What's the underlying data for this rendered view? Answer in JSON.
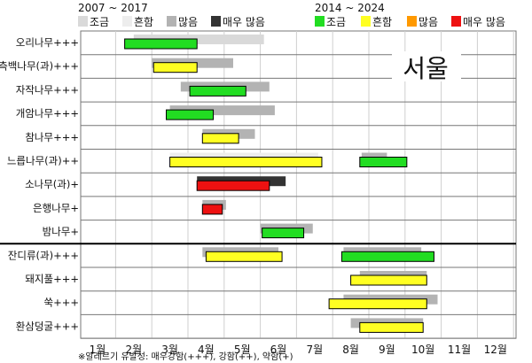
{
  "chart_data": {
    "type": "gantt",
    "periods": {
      "old": {
        "label": "2007 ~ 2017",
        "legend": [
          {
            "name": "조금",
            "color": "#d9d9d9"
          },
          {
            "name": "흔함",
            "color": "#ededed"
          },
          {
            "name": "많음",
            "color": "#b3b3b3"
          },
          {
            "name": "매우 많음",
            "color": "#333333"
          }
        ]
      },
      "new": {
        "label": "2014 ~ 2024",
        "legend": [
          {
            "name": "조금",
            "color": "#22dd22"
          },
          {
            "name": "흔함",
            "color": "#ffff22"
          },
          {
            "name": "많음",
            "color": "#ff9900"
          },
          {
            "name": "매우 많음",
            "color": "#ee1111"
          }
        ]
      }
    },
    "city": "서울",
    "months": [
      "1월",
      "2월",
      "3월",
      "4월",
      "5월",
      "6월",
      "7월",
      "8월",
      "9월",
      "10월",
      "11월",
      "12월"
    ],
    "group_separator_after": "밤나무+",
    "rows": [
      {
        "name": "오리나무+++",
        "old": [
          {
            "start": 2.0,
            "end": 5.6,
            "level": "조금"
          }
        ],
        "new": [
          {
            "start": 1.75,
            "end": 3.75,
            "level": "조금"
          }
        ]
      },
      {
        "name": "측백나무(과)+++",
        "old": [
          {
            "start": 2.5,
            "end": 4.75,
            "level": "많음"
          }
        ],
        "new": [
          {
            "start": 2.55,
            "end": 3.75,
            "level": "흔함"
          }
        ]
      },
      {
        "name": "자작나무+++",
        "old": [
          {
            "start": 3.3,
            "end": 5.75,
            "level": "많음"
          }
        ],
        "new": [
          {
            "start": 3.55,
            "end": 5.1,
            "level": "조금"
          }
        ]
      },
      {
        "name": "개암나무+++",
        "old": [
          {
            "start": 3.0,
            "end": 5.9,
            "level": "많음"
          }
        ],
        "new": [
          {
            "start": 2.9,
            "end": 4.2,
            "level": "조금"
          }
        ]
      },
      {
        "name": "참나무+++",
        "old": [
          {
            "start": 3.9,
            "end": 5.35,
            "level": "많음"
          }
        ],
        "new": [
          {
            "start": 3.9,
            "end": 4.9,
            "level": "흔함"
          }
        ]
      },
      {
        "name": "느릅나무(과)++",
        "old": [
          {
            "start": 3.0,
            "end": 7.1,
            "level": "흔함"
          },
          {
            "start": 8.3,
            "end": 9.0,
            "level": "많음"
          }
        ],
        "new": [
          {
            "start": 3.0,
            "end": 7.2,
            "level": "흔함"
          },
          {
            "start": 8.25,
            "end": 9.55,
            "level": "조금"
          }
        ]
      },
      {
        "name": "소나무(과)+",
        "old": [
          {
            "start": 3.75,
            "end": 6.2,
            "level": "매우 많음"
          }
        ],
        "new": [
          {
            "start": 3.75,
            "end": 5.75,
            "level": "매우 많음"
          }
        ]
      },
      {
        "name": "은행나무+",
        "old": [
          {
            "start": 3.9,
            "end": 4.55,
            "level": "많음"
          }
        ],
        "new": [
          {
            "start": 3.9,
            "end": 4.45,
            "level": "매우 많음"
          }
        ]
      },
      {
        "name": "밤나무+",
        "old": [
          {
            "start": 5.5,
            "end": 6.95,
            "level": "많음"
          }
        ],
        "new": [
          {
            "start": 5.55,
            "end": 6.7,
            "level": "조금"
          }
        ]
      },
      {
        "name": "잔디류(과)+++",
        "old": [
          {
            "start": 3.9,
            "end": 6.0,
            "level": "많음"
          },
          {
            "start": 7.8,
            "end": 9.95,
            "level": "많음"
          }
        ],
        "new": [
          {
            "start": 4.0,
            "end": 6.1,
            "level": "흔함"
          },
          {
            "start": 7.75,
            "end": 10.3,
            "level": "조금"
          }
        ]
      },
      {
        "name": "돼지풀+++",
        "old": [
          {
            "start": 8.25,
            "end": 10.1,
            "level": "많음"
          }
        ],
        "new": [
          {
            "start": 8.0,
            "end": 10.1,
            "level": "흔함"
          }
        ]
      },
      {
        "name": "쑥+++",
        "old": [
          {
            "start": 7.8,
            "end": 10.4,
            "level": "많음"
          }
        ],
        "new": [
          {
            "start": 7.4,
            "end": 10.1,
            "level": "흔함"
          }
        ]
      },
      {
        "name": "환삼덩굴+++",
        "old": [
          {
            "start": 8.0,
            "end": 10.0,
            "level": "많음"
          }
        ],
        "new": [
          {
            "start": 8.25,
            "end": 10.0,
            "level": "흔함"
          }
        ]
      }
    ],
    "footnote": "※알레르기 유발성: 매우강함(+++), 강함(++), 약함(+)"
  }
}
